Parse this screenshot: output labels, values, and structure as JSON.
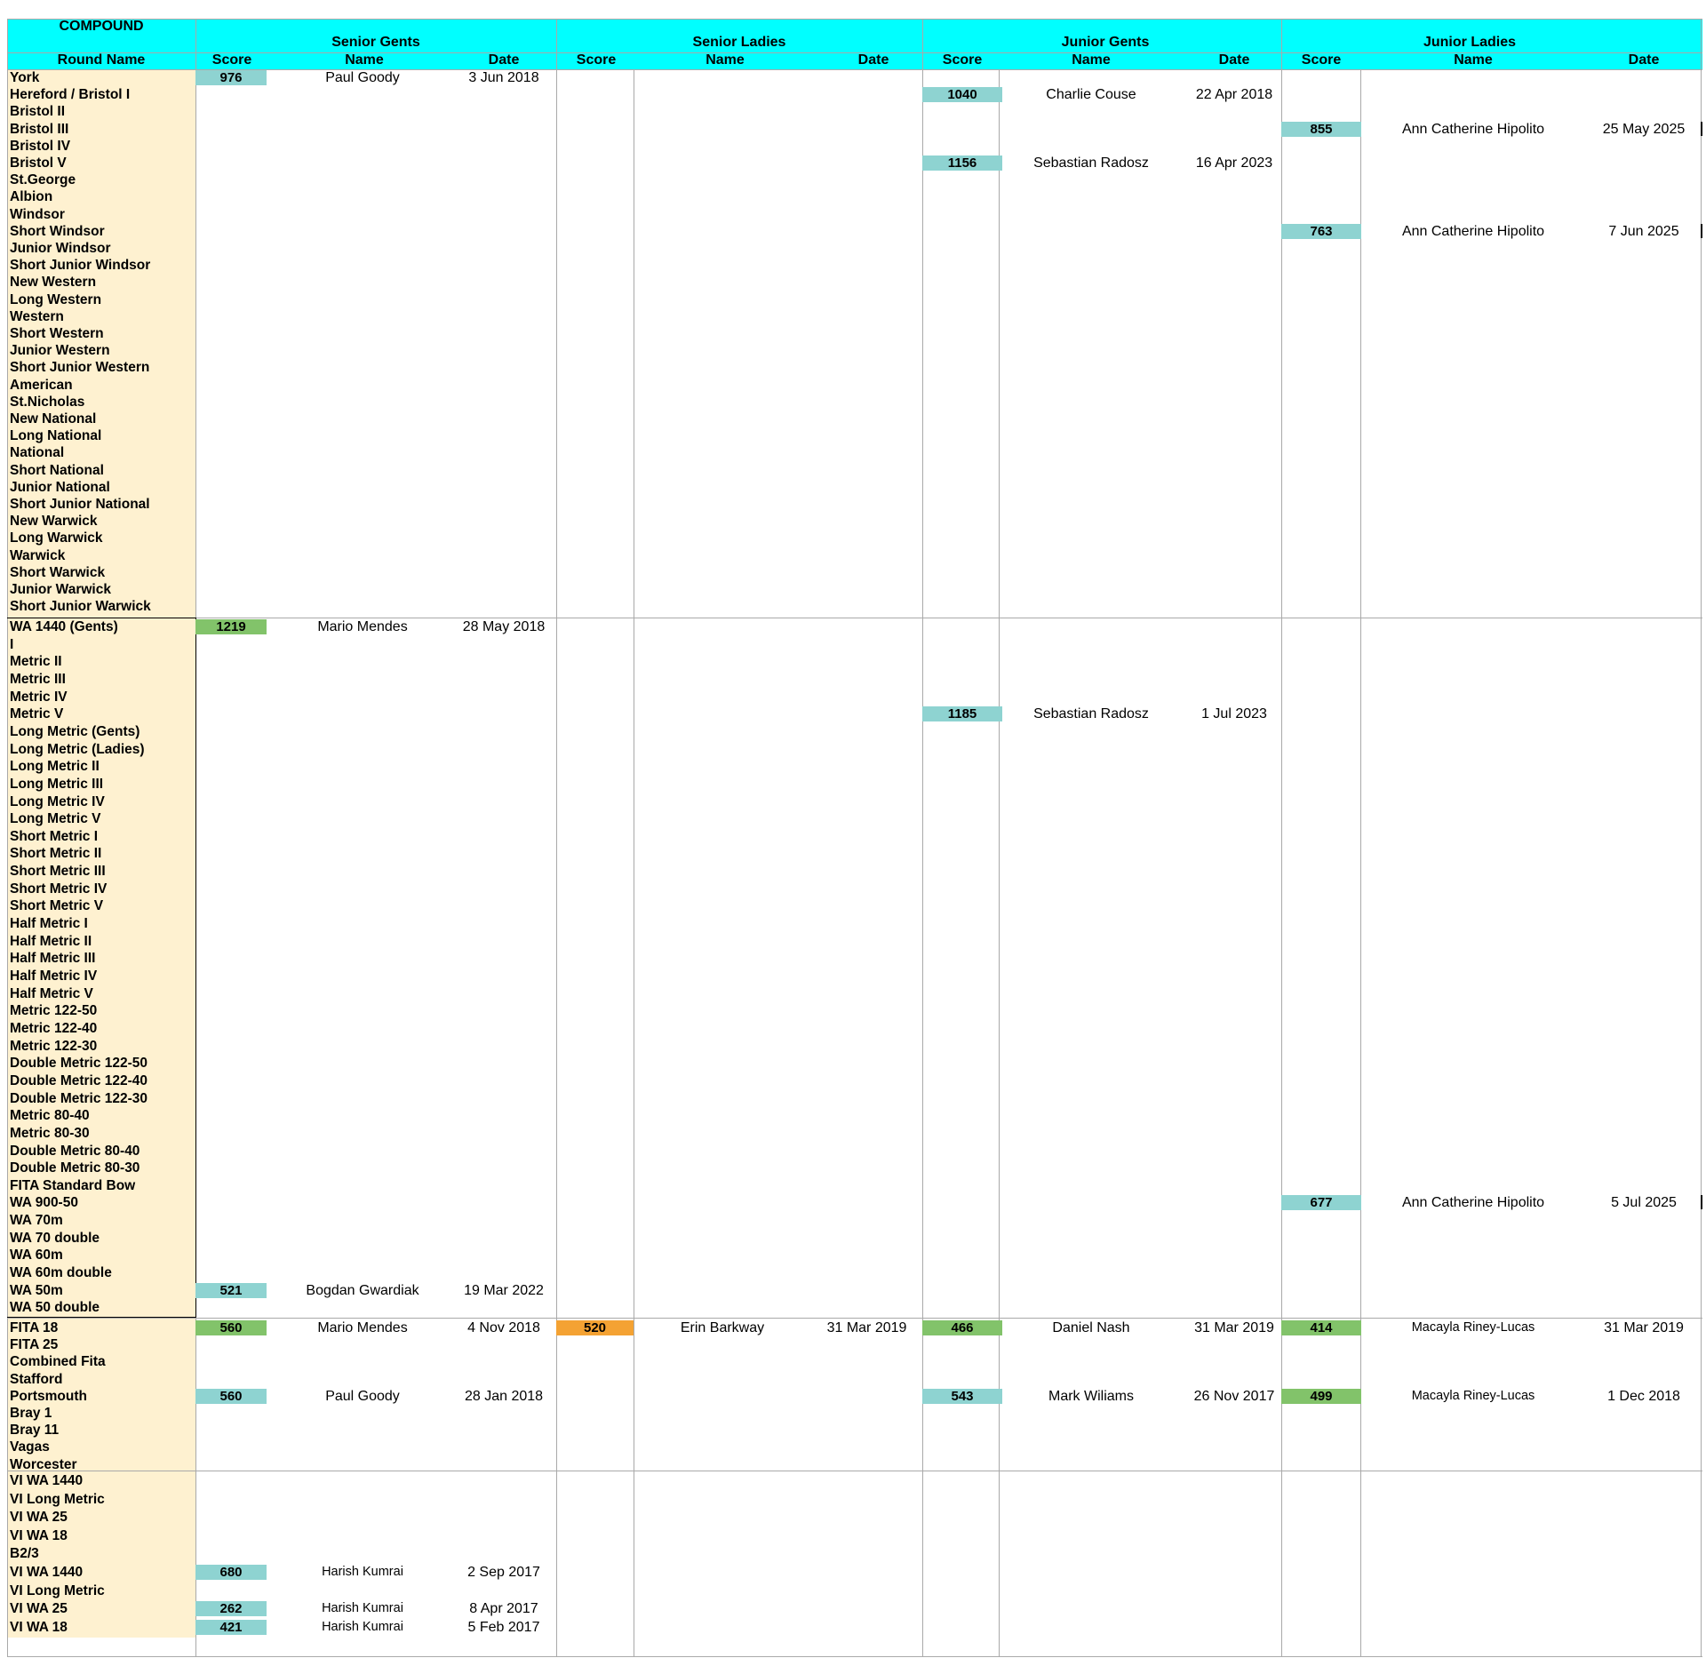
{
  "header": {
    "title": "COMPOUND",
    "round_name_label": "Round Name",
    "groups": [
      "Senior Gents",
      "Senior Ladies",
      "Junior Gents",
      "Junior Ladies"
    ],
    "sub": {
      "score": "Score",
      "name": "Name",
      "date": "Date"
    }
  },
  "rounds": [
    "York",
    "Hereford / Bristol I",
    "Bristol II",
    "Bristol III",
    "Bristol IV",
    "Bristol V",
    "St.George",
    "Albion",
    "Windsor",
    "Short Windsor",
    "Junior Windsor",
    "Short Junior Windsor",
    "New Western",
    "Long Western",
    "Western",
    "Short Western",
    "Junior Western",
    "Short Junior Western",
    "American",
    "St.Nicholas",
    "New National",
    "Long National",
    "National",
    "Short National",
    "Junior National",
    "Short Junior National",
    "New Warwick",
    "Long Warwick",
    "Warwick",
    "Short Warwick",
    "Junior Warwick",
    "Short Junior Warwick",
    "WA 1440 (Gents)",
    "I",
    "Metric II",
    "Metric III",
    "Metric IV",
    "Metric V",
    "Long Metric (Gents)",
    "Long Metric (Ladies)",
    "Long Metric II",
    "Long Metric III",
    "Long Metric IV",
    "Long Metric V",
    "Short Metric I",
    "Short Metric II",
    "Short Metric III",
    "Short Metric IV",
    "Short Metric V",
    "Half Metric I",
    "Half Metric II",
    "Half Metric III",
    "Half Metric IV",
    "Half Metric V",
    "Metric 122-50",
    "Metric 122-40",
    "Metric 122-30",
    "Double Metric 122-50",
    "Double Metric 122-40",
    "Double Metric 122-30",
    "Metric 80-40",
    "Metric 80-30",
    "Double Metric 80-40",
    "Double Metric 80-30",
    "FITA Standard Bow",
    "WA 900-50",
    "WA 70m",
    "WA 70 double",
    "WA 60m",
    "WA 60m double",
    "WA 50m",
    "WA 50 double",
    "FITA 18",
    "FITA 25",
    "Combined Fita",
    "Stafford",
    "Portsmouth",
    "Bray 1",
    "Bray 11",
    "Vagas",
    "Worcester",
    "VI WA 1440",
    "VI Long Metric",
    "VI WA 25",
    "VI WA 18",
    "B2/3",
    "VI WA 1440",
    "VI Long Metric",
    "VI WA 25",
    "VI WA 18"
  ],
  "records": [
    {
      "row": 0,
      "group": 0,
      "score": "976",
      "name": "Paul Goody",
      "date": "3 Jun 2018",
      "color": "blue"
    },
    {
      "row": 1,
      "group": 2,
      "score": "1040",
      "name": "Charlie Couse",
      "date": "22 Apr 2018",
      "color": "blue"
    },
    {
      "row": 3,
      "group": 3,
      "score": "855",
      "name": "Ann Catherine Hipolito",
      "date": "25 May 2025",
      "color": "blue"
    },
    {
      "row": 5,
      "group": 2,
      "score": "1156",
      "name": "Sebastian Radosz",
      "date": "16 Apr 2023",
      "color": "blue"
    },
    {
      "row": 9,
      "group": 3,
      "score": "763",
      "name": "Ann Catherine Hipolito",
      "date": "7 Jun 2025",
      "color": "blue"
    },
    {
      "row": 32,
      "group": 0,
      "score": "1219",
      "name": "Mario Mendes",
      "date": "28 May 2018",
      "color": "green"
    },
    {
      "row": 37,
      "group": 2,
      "score": "1185",
      "name": "Sebastian Radosz",
      "date": "1 Jul 2023",
      "color": "blue"
    },
    {
      "row": 65,
      "group": 3,
      "score": "677",
      "name": "Ann Catherine Hipolito",
      "date": "5 Jul 2025",
      "color": "blue"
    },
    {
      "row": 70,
      "group": 0,
      "score": "521",
      "name": "Bogdan Gwardiak",
      "date": "19 Mar 2022",
      "color": "blue"
    },
    {
      "row": 72,
      "group": 0,
      "score": "560",
      "name": "Mario Mendes",
      "date": "4 Nov 2018",
      "color": "green"
    },
    {
      "row": 72,
      "group": 1,
      "score": "520",
      "name": "Erin Barkway",
      "date": "31 Mar 2019",
      "color": "orange"
    },
    {
      "row": 72,
      "group": 2,
      "score": "466",
      "name": "Daniel Nash",
      "date": "31 Mar 2019",
      "color": "green"
    },
    {
      "row": 72,
      "group": 3,
      "score": "414",
      "name": "Macayla Riney-Lucas",
      "date": "31 Mar 2019",
      "color": "green",
      "small": true
    },
    {
      "row": 76,
      "group": 0,
      "score": "560",
      "name": "Paul Goody",
      "date": "28 Jan 2018",
      "color": "blue"
    },
    {
      "row": 76,
      "group": 2,
      "score": "543",
      "name": "Mark Wiliams",
      "date": "26 Nov 2017",
      "color": "blue"
    },
    {
      "row": 76,
      "group": 3,
      "score": "499",
      "name": "Macayla Riney-Lucas",
      "date": "1 Dec 2018",
      "color": "green",
      "small": true
    },
    {
      "row": 86,
      "group": 0,
      "score": "680",
      "name": "Harish Kumrai",
      "date": "2 Sep 2017",
      "color": "blue",
      "small": true
    },
    {
      "row": 88,
      "group": 0,
      "score": "262",
      "name": "Harish Kumrai",
      "date": "8 Apr 2017",
      "color": "blue",
      "small": true
    },
    {
      "row": 89,
      "group": 0,
      "score": "421",
      "name": "Harish Kumrai",
      "date": "5 Feb 2017",
      "color": "blue",
      "small": true
    }
  ],
  "colors": {
    "header": "#00ffff",
    "round_column": "#fef1d0",
    "score_blue": "#8ed3d1",
    "score_green": "#82c36a",
    "score_orange": "#f4a233"
  }
}
